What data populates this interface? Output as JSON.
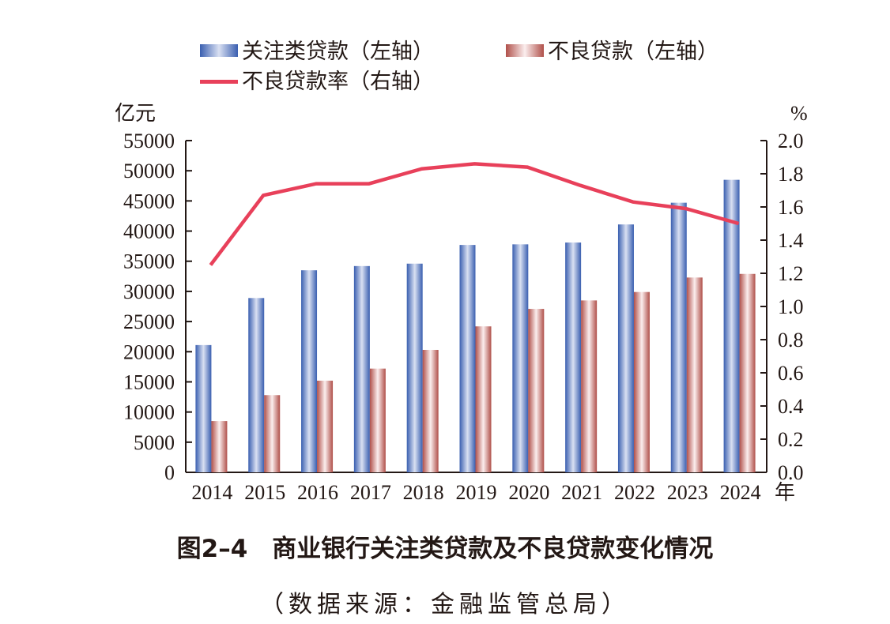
{
  "chart_data": {
    "type": "bar",
    "categories": [
      "2014",
      "2015",
      "2016",
      "2017",
      "2018",
      "2019",
      "2020",
      "2021",
      "2022",
      "2023",
      "2024"
    ],
    "x_unit": "年",
    "series": [
      {
        "name": "关注类贷款（左轴）",
        "type": "bar",
        "axis": "left",
        "color": "#3a5fb0",
        "values": [
          21100,
          28900,
          33500,
          34200,
          34600,
          37700,
          37800,
          38100,
          41100,
          44700,
          48500
        ]
      },
      {
        "name": "不良贷款（左轴）",
        "type": "bar",
        "axis": "left",
        "color": "#b0504a",
        "values": [
          8500,
          12800,
          15200,
          17200,
          20300,
          24200,
          27100,
          28500,
          29900,
          32300,
          32900
        ]
      },
      {
        "name": "不良贷款率（右轴）",
        "type": "line",
        "axis": "right",
        "color": "#e8405a",
        "values": [
          1.25,
          1.67,
          1.74,
          1.74,
          1.83,
          1.86,
          1.84,
          1.73,
          1.63,
          1.59,
          1.5
        ]
      }
    ],
    "left_axis": {
      "label": "亿元",
      "ylim": [
        0,
        55000
      ],
      "ticks": [
        "0",
        "5000",
        "10000",
        "15000",
        "20000",
        "25000",
        "30000",
        "35000",
        "40000",
        "45000",
        "50000",
        "55000"
      ]
    },
    "right_axis": {
      "label": "%",
      "ylim": [
        0,
        2.0
      ],
      "ticks": [
        "0.0",
        "0.2",
        "0.4",
        "0.6",
        "0.8",
        "1.0",
        "1.2",
        "1.4",
        "1.6",
        "1.8",
        "2.0"
      ]
    },
    "legend_position": "top",
    "grid": false
  },
  "caption": {
    "title": "图2–4　商业银行关注类贷款及不良贷款变化情况",
    "source": "（数据来源：金融监管总局）"
  }
}
